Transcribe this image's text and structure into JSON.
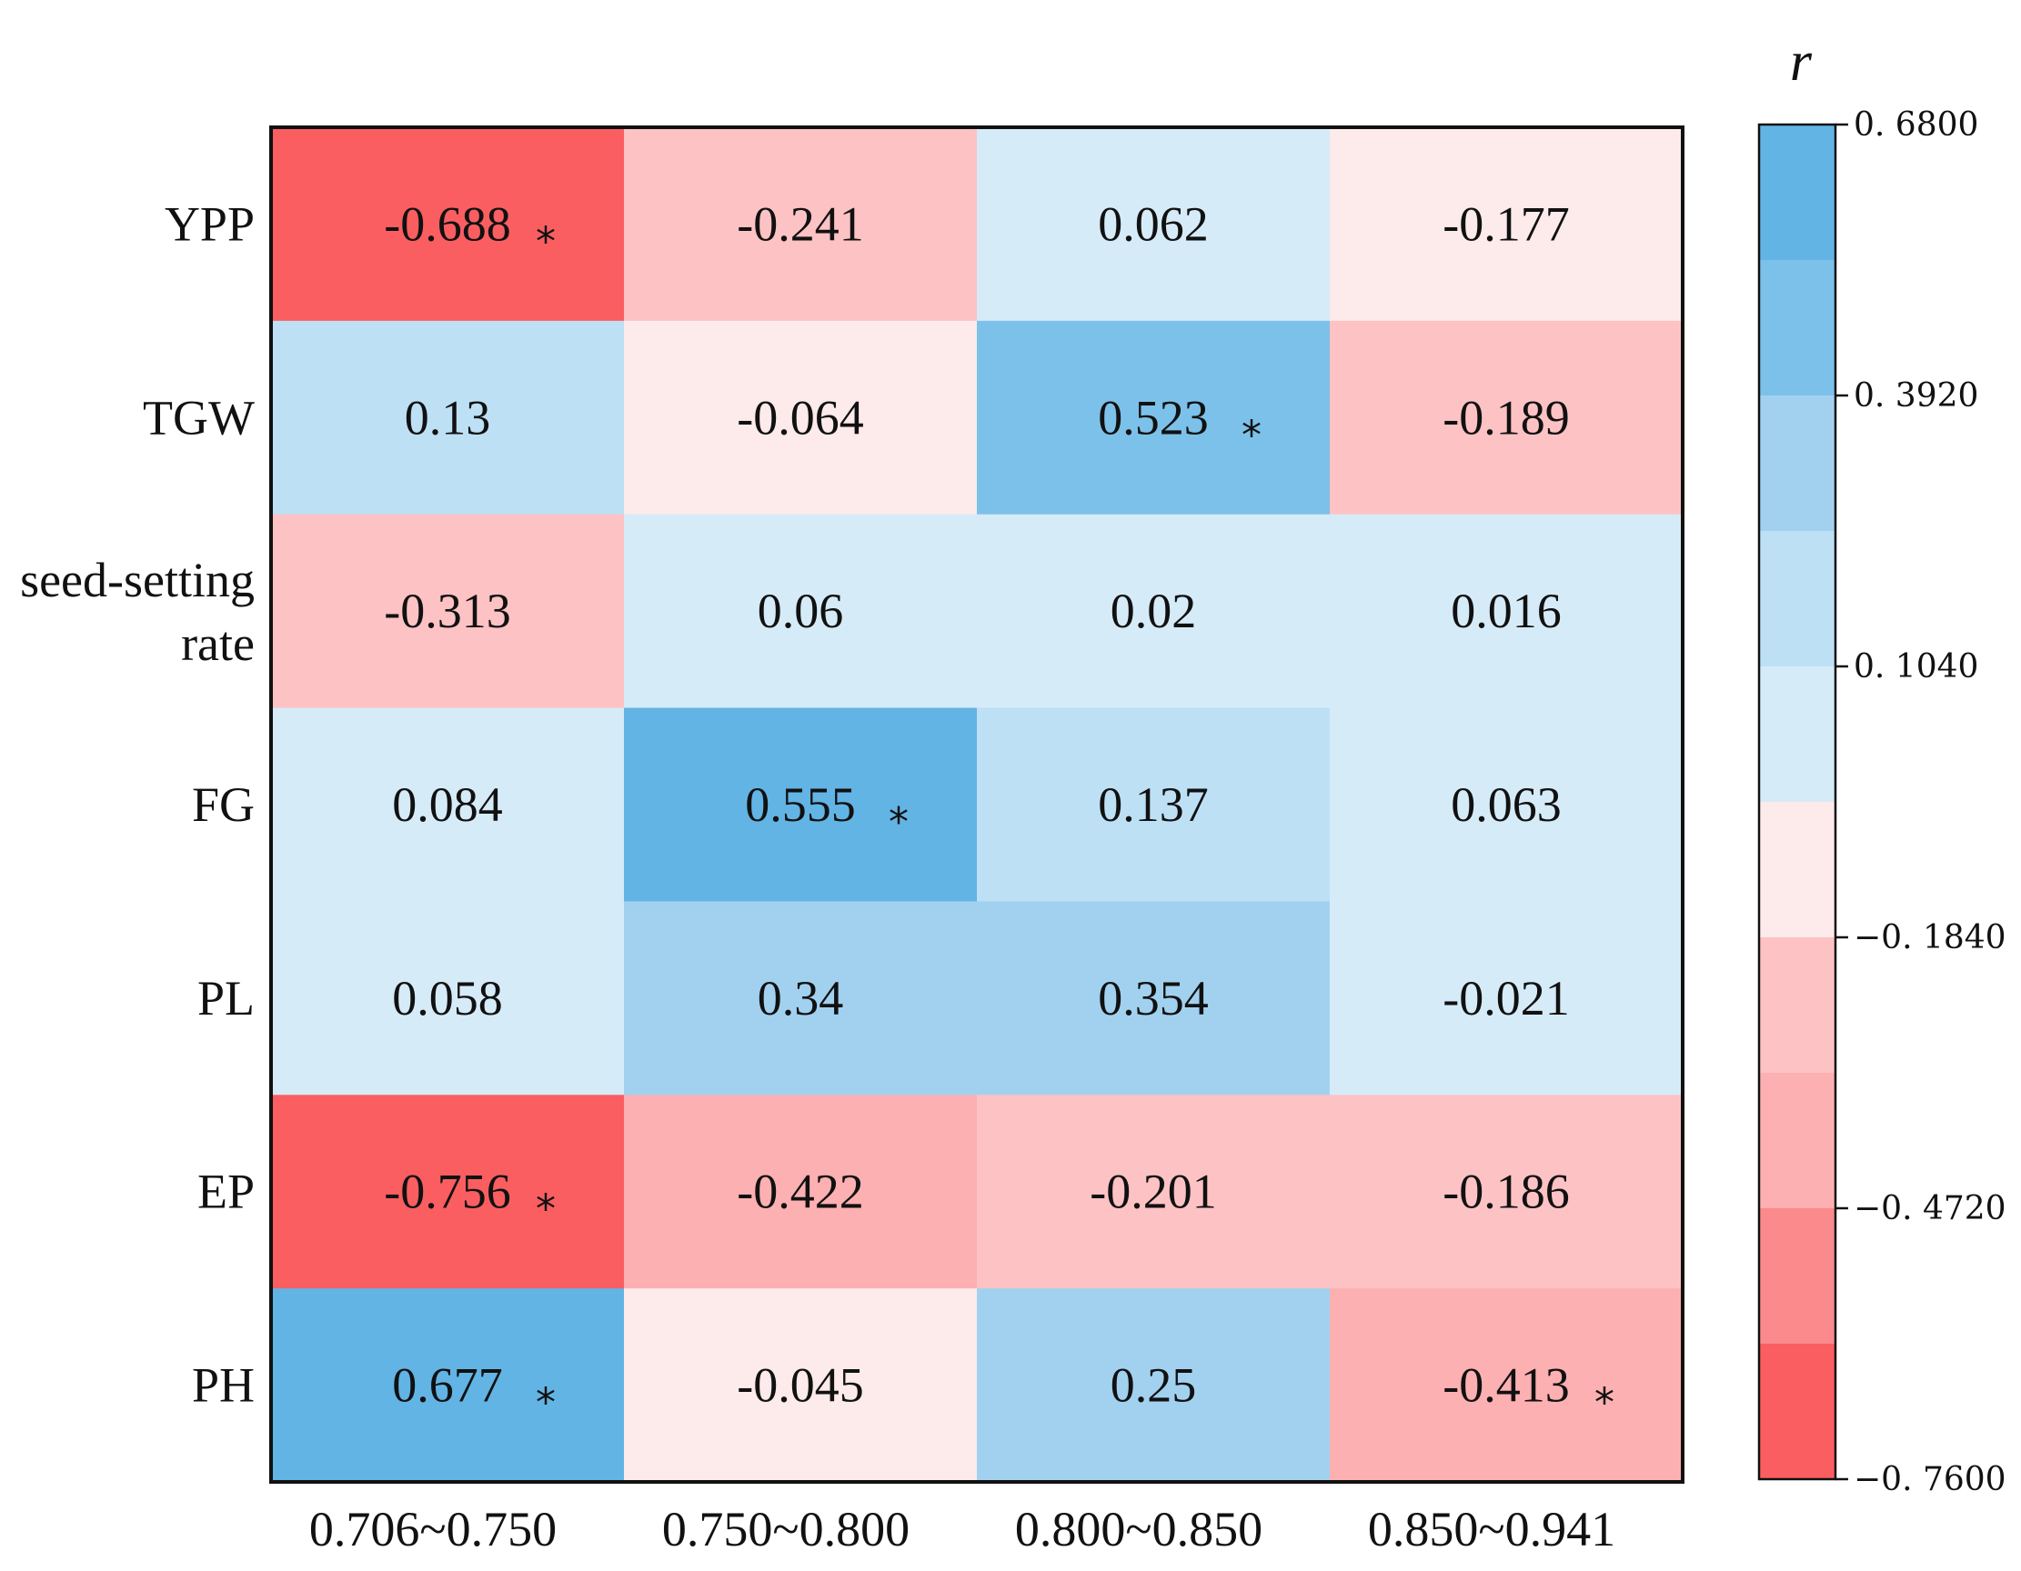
{
  "chart_data": {
    "type": "heatmap",
    "rows": [
      "YPP",
      "TGW",
      "seed-setting rate",
      "FG",
      "PL",
      "EP",
      "PH"
    ],
    "columns": [
      "0.706~0.750",
      "0.750~0.800",
      "0.800~0.850",
      "0.850~0.941"
    ],
    "values": [
      [
        -0.688,
        -0.241,
        0.062,
        -0.177
      ],
      [
        0.13,
        -0.064,
        0.523,
        -0.189
      ],
      [
        -0.313,
        0.06,
        0.02,
        0.016
      ],
      [
        0.084,
        0.555,
        0.137,
        0.063
      ],
      [
        0.058,
        0.34,
        0.354,
        -0.021
      ],
      [
        -0.756,
        -0.422,
        -0.201,
        -0.186
      ],
      [
        0.677,
        -0.045,
        0.25,
        -0.413
      ]
    ],
    "labels": [
      [
        "-0.688",
        "-0.241",
        "0.062",
        "-0.177"
      ],
      [
        "0.13",
        "-0.064",
        "0.523",
        "-0.189"
      ],
      [
        "-0.313",
        "0.06",
        "0.02",
        "0.016"
      ],
      [
        "0.084",
        "0.555",
        "0.137",
        "0.063"
      ],
      [
        "0.058",
        "0.34",
        "0.354",
        "-0.021"
      ],
      [
        "-0.756",
        "-0.422",
        "-0.201",
        "-0.186"
      ],
      [
        "0.677",
        "-0.045",
        "0.25",
        "-0.413"
      ]
    ],
    "significant": [
      [
        true,
        false,
        false,
        false
      ],
      [
        false,
        false,
        true,
        false
      ],
      [
        false,
        false,
        false,
        false
      ],
      [
        false,
        true,
        false,
        false
      ],
      [
        false,
        false,
        false,
        false
      ],
      [
        true,
        false,
        false,
        false
      ],
      [
        true,
        false,
        false,
        true
      ]
    ],
    "significance_marker": "*",
    "colorbar": {
      "title": "r",
      "range": [
        -0.76,
        0.68
      ],
      "ticks": [
        {
          "value": 0.68,
          "label": "0. 6800"
        },
        {
          "value": 0.392,
          "label": "0. 3920"
        },
        {
          "value": 0.104,
          "label": "0. 1040"
        },
        {
          "value": -0.184,
          "label": "−0. 1840"
        },
        {
          "value": -0.472,
          "label": "−0. 4720"
        },
        {
          "value": -0.76,
          "label": "−0. 7600"
        }
      ],
      "bands": [
        {
          "from": 0.536,
          "to": 0.68,
          "color": "#62b4e4"
        },
        {
          "from": 0.392,
          "to": 0.536,
          "color": "#7cc1e9"
        },
        {
          "from": 0.248,
          "to": 0.392,
          "color": "#a2d1f0"
        },
        {
          "from": 0.104,
          "to": 0.248,
          "color": "#bde0f5"
        },
        {
          "from": -0.04,
          "to": 0.104,
          "color": "#d6ebf8"
        },
        {
          "from": -0.184,
          "to": -0.04,
          "color": "#fdeaea"
        },
        {
          "from": -0.328,
          "to": -0.184,
          "color": "#fdc2c4"
        },
        {
          "from": -0.472,
          "to": -0.328,
          "color": "#fcb0b2"
        },
        {
          "from": -0.616,
          "to": -0.472,
          "color": "#fa8a8c"
        },
        {
          "from": -0.76,
          "to": -0.616,
          "color": "#fa5e60"
        }
      ]
    }
  }
}
